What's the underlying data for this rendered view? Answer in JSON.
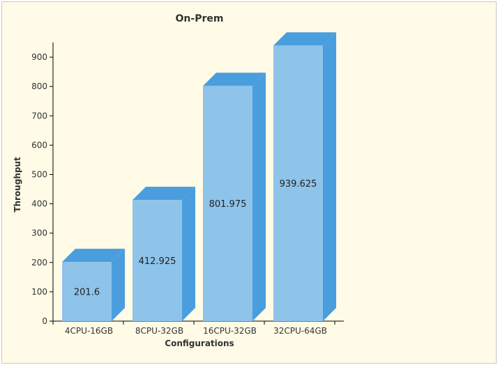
{
  "chart_data": {
    "type": "bar",
    "title": "On-Prem",
    "xlabel": "Configurations",
    "ylabel": "Throughput",
    "categories": [
      "4CPU-16GB",
      "8CPU-32GB",
      "16CPU-32GB",
      "32CPU-64GB"
    ],
    "values": [
      201.6,
      412.925,
      801.975,
      939.625
    ],
    "value_labels": [
      "201.6",
      "412.925",
      "801.975",
      "939.625"
    ],
    "ylim": [
      0,
      950
    ],
    "yticks": [
      0,
      100,
      200,
      300,
      400,
      500,
      600,
      700,
      800,
      900
    ],
    "ytick_labels": [
      "0",
      "100",
      "200",
      "300",
      "400",
      "500",
      "600",
      "700",
      "800",
      "900"
    ],
    "grid": false,
    "legend": "none",
    "style": "3d-column",
    "colors": {
      "bar_front": "#8ec3ea",
      "bar_side": "#4a9ede",
      "bar_top": "#4a9ede",
      "background": "#fffbe6",
      "axis": "#000000"
    }
  }
}
